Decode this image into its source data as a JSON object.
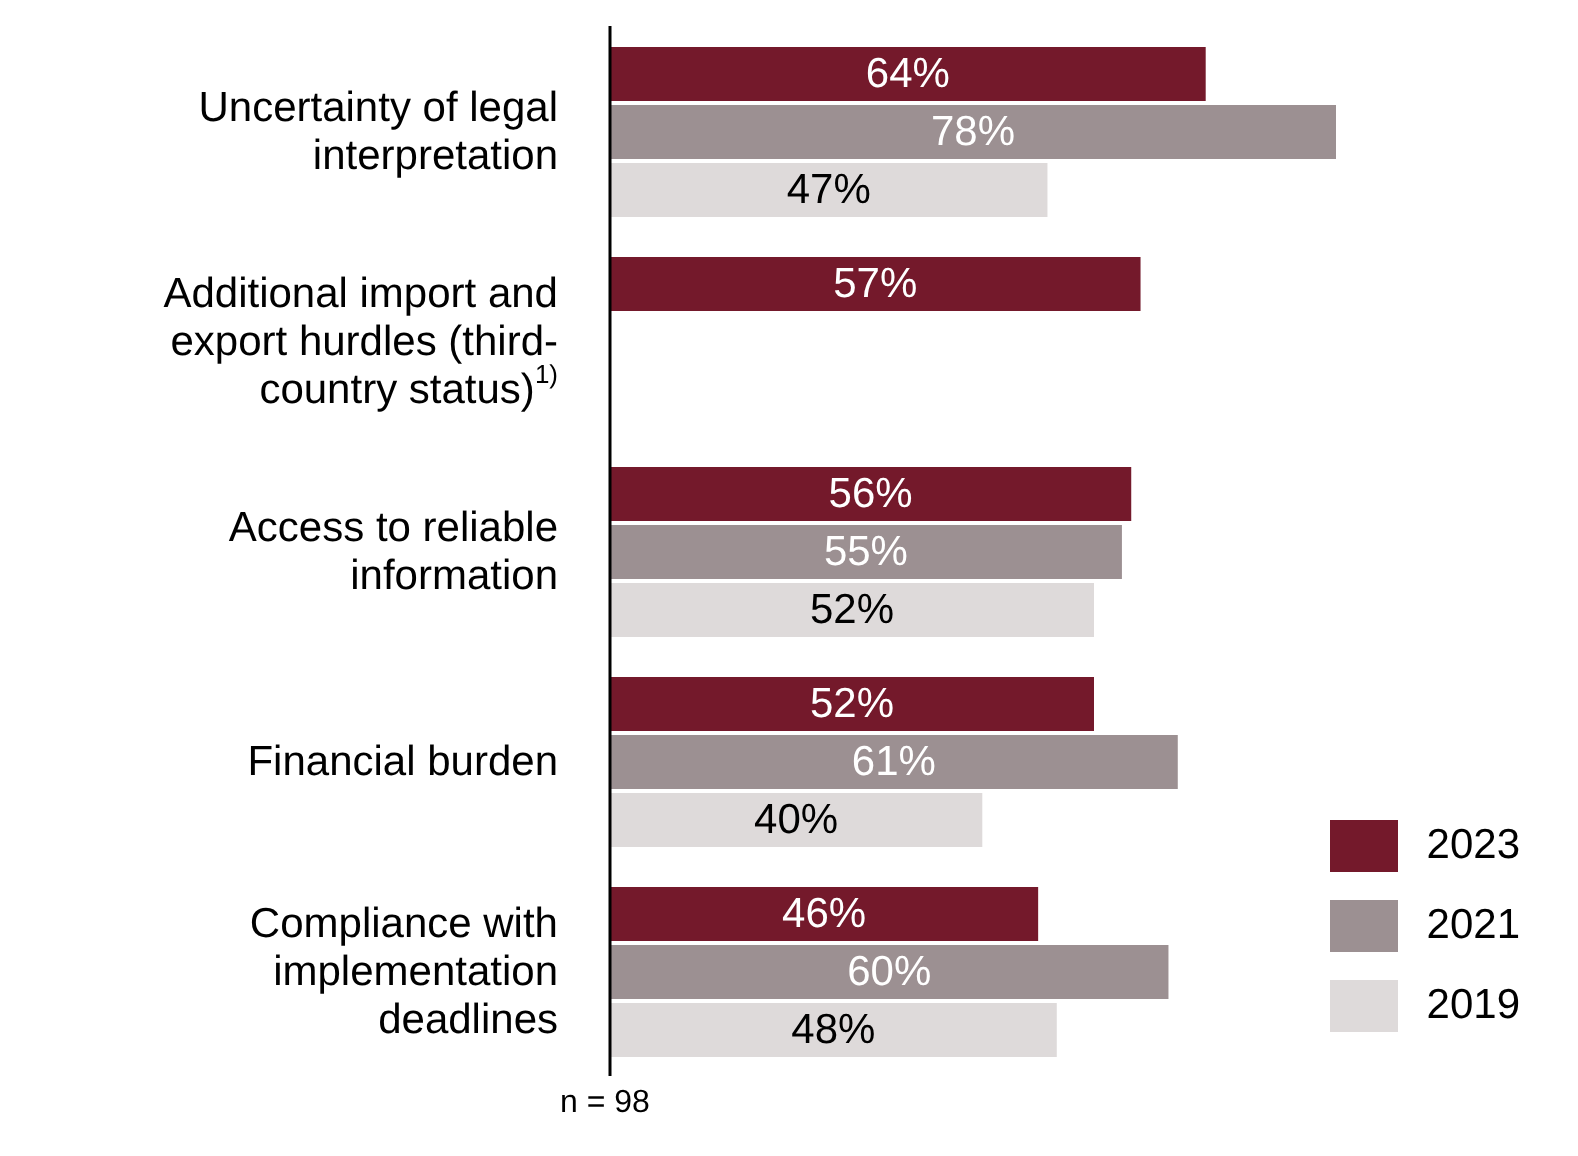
{
  "chart_data": {
    "type": "bar",
    "orientation": "horizontal",
    "categories": [
      "Uncertainty of legal interpretation",
      "Additional import and export hurdles (third-country status)$^{1)}$",
      "Access to reliable information",
      "Financial burden",
      "Compliance with implementation deadlines"
    ],
    "series": [
      {
        "name": "2023",
        "color": "#74192b",
        "values": [
          64,
          57,
          56,
          52,
          46
        ],
        "value_labels": [
          "64%",
          "57%",
          "56%",
          "52%",
          "46%"
        ]
      },
      {
        "name": "2021",
        "color": "#9c9092",
        "values": [
          78,
          null,
          55,
          61,
          60
        ],
        "value_labels": [
          "78%",
          null,
          "55%",
          "61%",
          "60%"
        ]
      },
      {
        "name": "2019",
        "color": "#dedada",
        "values": [
          47,
          null,
          52,
          40,
          48
        ],
        "value_labels": [
          "47%",
          null,
          "52%",
          "40%",
          "48%"
        ]
      }
    ],
    "legend": "bottom right",
    "annotations": [
      "n = 98"
    ]
  }
}
